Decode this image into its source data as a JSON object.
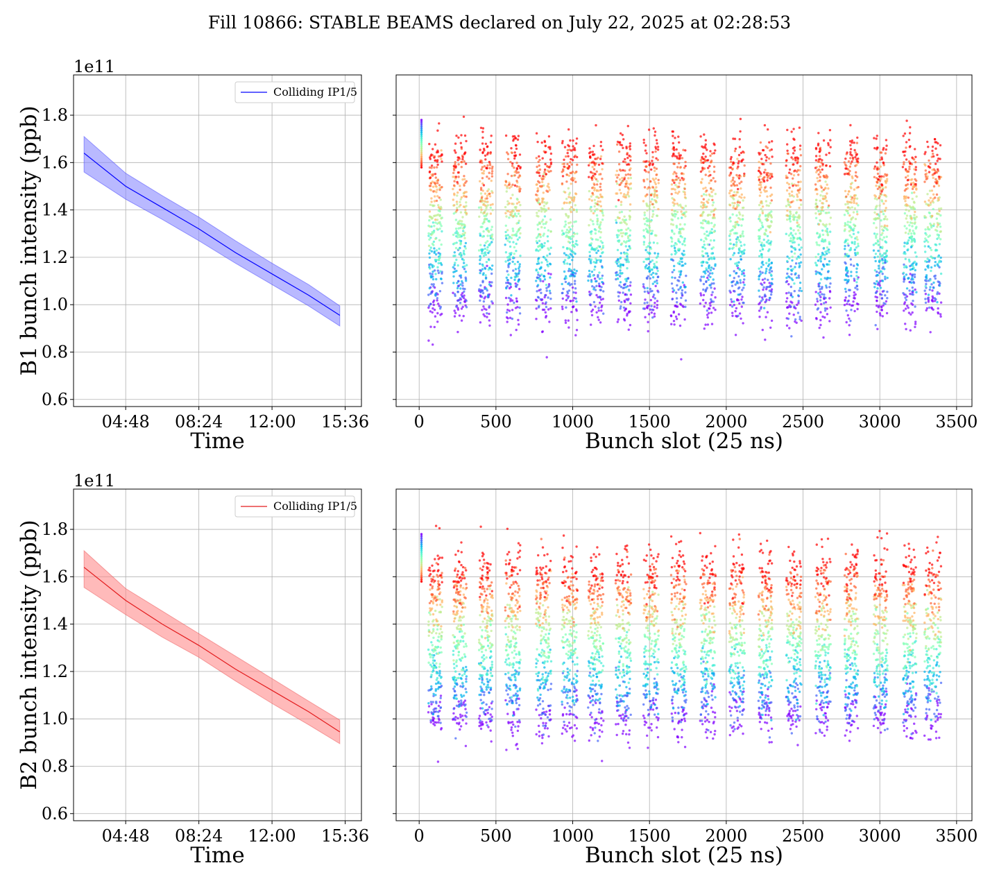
{
  "title": "Fill 10866: STABLE BEAMS declared on July 22, 2025 at 02:28:53",
  "colors": {
    "b1_line": "#0000ff",
    "b1_band": "#8a8aff",
    "b2_line": "#e31a1c",
    "b2_band": "#ff8c8c",
    "grid": "#b0b0b0",
    "scatter_colormap": "rainbow (later times purple/blue, earlier times red)"
  },
  "chart_data": [
    {
      "id": "b1_time",
      "type": "line",
      "series": [
        {
          "name": "Colliding IP1/5",
          "x": [
            "02:45",
            "04:48",
            "06:36",
            "08:24",
            "10:12",
            "12:00",
            "13:48",
            "15:20"
          ],
          "mean": [
            1.64,
            1.5,
            1.41,
            1.32,
            1.22,
            1.13,
            1.04,
            0.955
          ],
          "upper": [
            1.71,
            1.555,
            1.46,
            1.37,
            1.27,
            1.175,
            1.085,
            0.995
          ],
          "lower": [
            1.56,
            1.445,
            1.36,
            1.27,
            1.175,
            1.085,
            0.995,
            0.91
          ]
        }
      ],
      "xlabel": "Time",
      "ylabel": "B1 bunch intensity (ppb)",
      "y_offset_label": "1e11",
      "x_ticks": [
        "04:48",
        "08:24",
        "12:00",
        "15:36"
      ],
      "y_ticks": [
        "0.6",
        "0.8",
        "1.0",
        "1.2",
        "1.4",
        "1.6",
        "1.8"
      ],
      "xlim": [
        "02:14",
        "16:24"
      ],
      "ylim": [
        0.57,
        1.97
      ],
      "grid": true,
      "legend_position": "top-right"
    },
    {
      "id": "b1_slots",
      "type": "scatter",
      "xlabel": "Bunch slot (25 ns)",
      "x_ticks": [
        "0",
        "500",
        "1000",
        "1500",
        "2000",
        "2500",
        "3000",
        "3500"
      ],
      "xlim": [
        -150,
        3600
      ],
      "ylim": [
        0.57,
        1.97
      ],
      "grid": true,
      "color_scale": "rainbow by time (red = start, purple = end)",
      "trains_start_slot": [
        60,
        220,
        390,
        560,
        760,
        930,
        1100,
        1280,
        1460,
        1640,
        1830,
        2020,
        2210,
        2390,
        2580,
        2770,
        2960,
        3150,
        3290
      ],
      "trains_end_slot": [
        150,
        310,
        480,
        660,
        860,
        1030,
        1200,
        1380,
        1560,
        1740,
        1930,
        2120,
        2300,
        2490,
        2680,
        2860,
        3050,
        3240,
        3400
      ],
      "initial_mean": 1.63,
      "final_mean": 1.0
    },
    {
      "id": "b2_time",
      "type": "line",
      "series": [
        {
          "name": "Colliding IP1/5",
          "x": [
            "02:45",
            "04:48",
            "06:36",
            "08:24",
            "10:12",
            "12:00",
            "13:48",
            "15:20"
          ],
          "mean": [
            1.64,
            1.5,
            1.4,
            1.31,
            1.21,
            1.12,
            1.03,
            0.945
          ],
          "upper": [
            1.71,
            1.55,
            1.455,
            1.36,
            1.265,
            1.17,
            1.075,
            0.995
          ],
          "lower": [
            1.555,
            1.44,
            1.345,
            1.26,
            1.16,
            1.065,
            0.975,
            0.895
          ]
        }
      ],
      "xlabel": "Time",
      "ylabel": "B2 bunch intensity (ppb)",
      "y_offset_label": "1e11",
      "x_ticks": [
        "04:48",
        "08:24",
        "12:00",
        "15:36"
      ],
      "y_ticks": [
        "0.6",
        "0.8",
        "1.0",
        "1.2",
        "1.4",
        "1.6",
        "1.8"
      ],
      "xlim": [
        "02:14",
        "16:24"
      ],
      "ylim": [
        0.57,
        1.97
      ],
      "grid": true,
      "legend_position": "top-right"
    },
    {
      "id": "b2_slots",
      "type": "scatter",
      "xlabel": "Bunch slot (25 ns)",
      "x_ticks": [
        "0",
        "500",
        "1000",
        "1500",
        "2000",
        "2500",
        "3000",
        "3500"
      ],
      "xlim": [
        -150,
        3600
      ],
      "ylim": [
        0.57,
        1.97
      ],
      "grid": true,
      "color_scale": "rainbow by time (red = start, purple = end)",
      "trains_start_slot": [
        60,
        220,
        390,
        560,
        760,
        930,
        1100,
        1280,
        1460,
        1640,
        1830,
        2020,
        2210,
        2390,
        2580,
        2770,
        2960,
        3150,
        3290
      ],
      "trains_end_slot": [
        150,
        310,
        480,
        660,
        860,
        1030,
        1200,
        1380,
        1560,
        1740,
        1930,
        2120,
        2300,
        2490,
        2680,
        2860,
        3050,
        3240,
        3400
      ],
      "initial_mean": 1.63,
      "final_mean": 1.0
    }
  ]
}
